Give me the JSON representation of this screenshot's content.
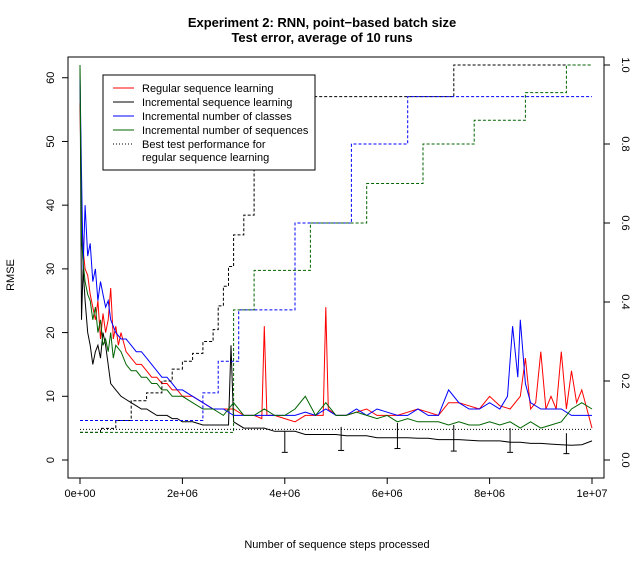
{
  "chart_data": {
    "type": "line",
    "title": "Experiment 2: RNN, point−based batch size",
    "subtitle": "Test error, average of 10 runs",
    "xlabel": "Number of sequence steps processed",
    "ylabel": "RMSE",
    "xlim": [
      0,
      10000000
    ],
    "ylim": [
      0,
      62
    ],
    "y2lim": [
      0,
      1
    ],
    "x_ticks": [
      0,
      2000000,
      4000000,
      6000000,
      8000000,
      10000000
    ],
    "x_tick_labels": [
      "0e+00",
      "2e+06",
      "4e+06",
      "6e+06",
      "8e+06",
      "1e+07"
    ],
    "y_ticks": [
      0,
      10,
      20,
      30,
      40,
      50,
      60
    ],
    "y_tick_labels": [
      "0",
      "10",
      "20",
      "30",
      "40",
      "50",
      "60"
    ],
    "y2_ticks": [
      0,
      0.2,
      0.4,
      0.6,
      0.8,
      1.0
    ],
    "y2_tick_labels": [
      "0.0",
      "0.2",
      "0.4",
      "0.6",
      "0.8",
      "1.0"
    ],
    "legend": [
      {
        "label": "Regular sequence learning",
        "color": "#ff0000",
        "style": "solid"
      },
      {
        "label": "Incremental sequence learning",
        "color": "#000000",
        "style": "solid"
      },
      {
        "label": "Incremental number of classes",
        "color": "#0000ff",
        "style": "solid"
      },
      {
        "label": "Incremental number of sequences",
        "color": "#006400",
        "style": "solid"
      },
      {
        "label": "Best test performance for",
        "label2": "regular sequence learning",
        "color": "#000000",
        "style": "dotted"
      }
    ],
    "series": [
      {
        "name": "Regular sequence learning",
        "color": "#ff0000",
        "axis": "left",
        "x": [
          0,
          30000,
          60000,
          100000,
          150000,
          200000,
          250000,
          300000,
          350000,
          400000,
          450000,
          500000,
          550000,
          600000,
          650000,
          700000,
          750000,
          800000,
          900000,
          1000000,
          1100000,
          1200000,
          1300000,
          1400000,
          1500000,
          1600000,
          1700000,
          1800000,
          1900000,
          2000000,
          2200000,
          2400000,
          2600000,
          2800000,
          3000000,
          3200000,
          3400000,
          3550000,
          3600000,
          3650000,
          3800000,
          4000000,
          4200000,
          4400000,
          4600000,
          4750000,
          4800000,
          4850000,
          5000000,
          5200000,
          5400000,
          5600000,
          5800000,
          6000000,
          6200000,
          6400000,
          6600000,
          6800000,
          7000000,
          7200000,
          7400000,
          7600000,
          7800000,
          8000000,
          8200000,
          8400000,
          8600000,
          8700000,
          8800000,
          8900000,
          9000000,
          9100000,
          9200000,
          9300000,
          9400000,
          9500000,
          9600000,
          9700000,
          9800000,
          9900000,
          10000000
        ],
        "y": [
          56,
          40,
          33,
          30,
          29,
          26,
          24,
          22,
          25,
          19,
          23,
          20,
          22,
          27,
          19,
          21,
          18,
          20,
          17,
          16,
          15,
          15,
          14,
          13,
          13,
          12,
          12,
          11,
          11,
          10,
          10,
          9,
          8,
          8,
          8,
          7,
          7,
          6.5,
          21,
          7,
          7,
          6.5,
          6,
          7,
          7,
          7,
          24,
          8,
          7,
          7,
          7.5,
          8,
          7,
          7,
          7,
          7.5,
          8,
          7.5,
          7,
          9,
          9,
          8.5,
          8,
          10,
          8.5,
          8,
          10,
          16,
          8,
          9,
          17,
          8,
          10,
          8,
          17,
          8,
          14,
          9,
          11,
          8,
          5
        ]
      },
      {
        "name": "Incremental sequence learning",
        "color": "#000000",
        "axis": "left",
        "x": [
          0,
          30000,
          60000,
          100000,
          150000,
          200000,
          250000,
          300000,
          350000,
          400000,
          450000,
          500000,
          600000,
          700000,
          800000,
          900000,
          1000000,
          1100000,
          1200000,
          1300000,
          1400000,
          1500000,
          1600000,
          1700000,
          1800000,
          1900000,
          2000000,
          2200000,
          2400000,
          2600000,
          2800000,
          2900000,
          2950000,
          3000000,
          3200000,
          3400000,
          3600000,
          3800000,
          4000000,
          4200000,
          4400000,
          4600000,
          4800000,
          5000000,
          5200000,
          5400000,
          5600000,
          5800000,
          6000000,
          6200000,
          6400000,
          6600000,
          6800000,
          7000000,
          7200000,
          7400000,
          7600000,
          7800000,
          8000000,
          8200000,
          8400000,
          8600000,
          8800000,
          9000000,
          9200000,
          9400000,
          9600000,
          9800000,
          10000000
        ],
        "y": [
          62,
          22,
          30,
          25,
          20,
          18,
          15,
          17,
          18,
          16,
          20,
          18,
          12,
          11,
          10,
          9.5,
          9,
          8.5,
          8,
          8,
          7.5,
          7,
          7,
          7,
          6.5,
          6.5,
          6,
          6,
          5.5,
          5.5,
          5.5,
          5.5,
          18,
          6,
          5,
          5,
          5,
          4.5,
          4.5,
          4.5,
          4,
          4,
          4,
          4,
          3.8,
          3.8,
          3.8,
          3.5,
          3.5,
          3.5,
          3.5,
          3.4,
          3.4,
          3.2,
          3.2,
          3.2,
          3.1,
          3,
          3,
          3,
          2.8,
          2.8,
          2.6,
          2.6,
          2.5,
          2.4,
          2.3,
          2.4,
          3
        ]
      },
      {
        "name": "Incremental number of classes",
        "color": "#0000ff",
        "axis": "left",
        "x": [
          0,
          30000,
          60000,
          100000,
          150000,
          200000,
          250000,
          300000,
          350000,
          400000,
          450000,
          500000,
          550000,
          600000,
          700000,
          800000,
          900000,
          1000000,
          1100000,
          1200000,
          1300000,
          1400000,
          1500000,
          1600000,
          1700000,
          1800000,
          1900000,
          2000000,
          2200000,
          2400000,
          2600000,
          2800000,
          3000000,
          3200000,
          3400000,
          3600000,
          3800000,
          4000000,
          4200000,
          4400000,
          4600000,
          4800000,
          5000000,
          5200000,
          5400000,
          5600000,
          5800000,
          6000000,
          6200000,
          6400000,
          6600000,
          6800000,
          7000000,
          7200000,
          7400000,
          7600000,
          7800000,
          8000000,
          8200000,
          8350000,
          8450000,
          8550000,
          8600000,
          8700000,
          8800000,
          9000000,
          9200000,
          9400000,
          9600000,
          9800000,
          10000000
        ],
        "y": [
          60,
          45,
          30,
          40,
          32,
          34,
          28,
          30,
          25,
          28,
          26,
          24,
          25,
          22,
          20,
          19,
          19,
          18,
          17,
          17,
          16,
          15,
          14,
          13,
          13,
          12,
          11,
          11,
          10,
          9,
          8,
          8,
          7,
          7,
          7,
          7,
          7,
          7,
          7,
          7.5,
          7,
          8,
          7,
          7,
          8,
          7,
          8,
          7.5,
          7,
          7,
          8,
          7,
          7,
          11,
          9,
          8,
          8,
          9,
          8,
          10,
          21,
          13,
          22,
          12,
          9,
          8,
          8,
          8,
          7,
          7,
          7
        ]
      },
      {
        "name": "Incremental number of sequences",
        "color": "#006400",
        "axis": "left",
        "x": [
          0,
          30000,
          60000,
          100000,
          150000,
          200000,
          250000,
          300000,
          350000,
          400000,
          450000,
          500000,
          550000,
          600000,
          650000,
          700000,
          800000,
          900000,
          1000000,
          1100000,
          1200000,
          1300000,
          1400000,
          1500000,
          1600000,
          1700000,
          1800000,
          1900000,
          2000000,
          2200000,
          2400000,
          2600000,
          2800000,
          3000000,
          3200000,
          3400000,
          3600000,
          3800000,
          4000000,
          4200000,
          4400000,
          4600000,
          4800000,
          5000000,
          5200000,
          5400000,
          5600000,
          5800000,
          6000000,
          6200000,
          6400000,
          6600000,
          6800000,
          7000000,
          7200000,
          7400000,
          7600000,
          7800000,
          8000000,
          8200000,
          8400000,
          8600000,
          8800000,
          9000000,
          9200000,
          9400000,
          9600000,
          9800000,
          10000000
        ],
        "y": [
          62,
          35,
          31,
          28,
          26,
          25,
          22,
          24,
          20,
          22,
          18,
          19,
          17,
          20,
          16,
          18,
          17,
          15,
          14,
          14,
          13,
          13,
          12,
          12,
          11,
          11,
          10,
          10,
          10,
          9,
          8,
          8,
          7,
          9,
          7,
          7,
          8,
          7,
          7,
          8,
          10,
          7,
          9,
          7,
          7,
          7.5,
          7,
          6.5,
          7,
          6,
          6.5,
          6,
          6,
          6,
          5.5,
          6,
          5.5,
          5.5,
          6,
          5.5,
          6,
          5,
          6,
          5,
          5.5,
          6,
          8,
          9,
          8
        ]
      },
      {
        "name": "Incremental sequence learning (fraction)",
        "color": "#000000",
        "axis": "right",
        "style": "dashed",
        "step": true,
        "x": [
          0,
          400000,
          700000,
          1000000,
          1300000,
          1600000,
          1800000,
          2000000,
          2200000,
          2400000,
          2600000,
          2700000,
          2800000,
          2900000,
          3000000,
          3200000,
          3400000,
          4400000,
          7300000,
          10000000
        ],
        "y": [
          0.07,
          0.08,
          0.1,
          0.15,
          0.17,
          0.2,
          0.23,
          0.25,
          0.27,
          0.3,
          0.33,
          0.39,
          0.44,
          0.49,
          0.57,
          0.62,
          0.79,
          0.92,
          1.0,
          1.0
        ]
      },
      {
        "name": "Incremental number of classes (fraction)",
        "color": "#0000ff",
        "axis": "right",
        "style": "dashed",
        "step": true,
        "x": [
          0,
          1800000,
          2400000,
          2700000,
          3100000,
          4200000,
          5300000,
          6400000,
          10000000
        ],
        "y": [
          0.1,
          0.1,
          0.17,
          0.25,
          0.38,
          0.6,
          0.8,
          0.92,
          0.92
        ]
      },
      {
        "name": "Incremental number of sequences (fraction)",
        "color": "#006400",
        "axis": "right",
        "style": "dashed",
        "step": true,
        "x": [
          0,
          1800000,
          2300000,
          2800000,
          3000000,
          3400000,
          4500000,
          5600000,
          6700000,
          7700000,
          8700000,
          9500000,
          10000000
        ],
        "y": [
          0.07,
          0.07,
          0.07,
          0.07,
          0.38,
          0.48,
          0.6,
          0.7,
          0.8,
          0.86,
          0.93,
          1.0,
          1.0
        ]
      },
      {
        "name": "Best test performance for regular sequence learning",
        "color": "#000000",
        "axis": "left",
        "style": "dotted",
        "x": [
          0,
          10000000
        ],
        "y": [
          4.8,
          4.8
        ]
      }
    ],
    "error_bars": {
      "color": "#000000",
      "x": [
        4000000,
        5100000,
        6200000,
        7300000,
        8400000,
        9500000
      ],
      "low": [
        1.2,
        1.5,
        1.8,
        1.4,
        1.2,
        1.0
      ],
      "high": [
        4.5,
        5.2,
        5.8,
        5.5,
        5.0,
        4.2
      ]
    }
  }
}
